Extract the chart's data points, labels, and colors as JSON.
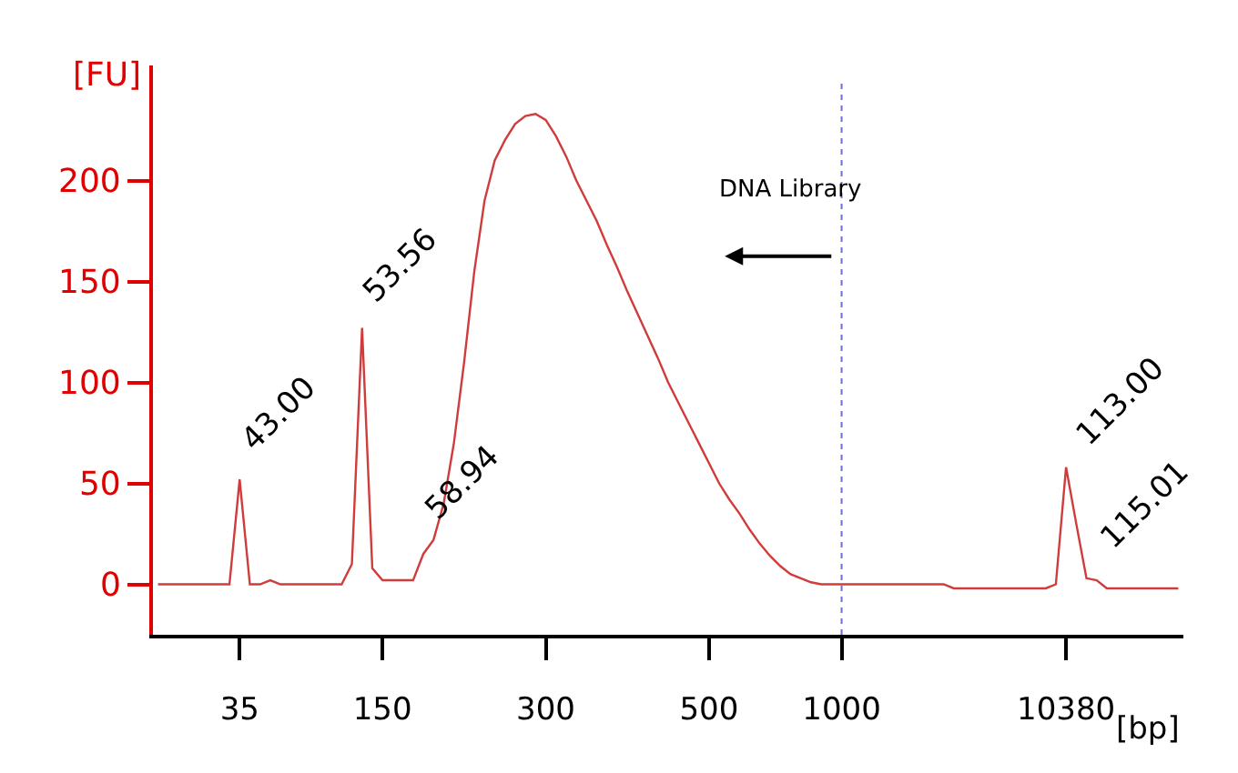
{
  "chart_data": {
    "type": "line",
    "ylabel": "[FU]",
    "xlabel": "[bp]",
    "categories": [
      null,
      null,
      null,
      null,
      null,
      null,
      null,
      null,
      "35",
      null,
      null,
      null,
      null,
      null,
      null,
      null,
      null,
      null,
      null,
      null,
      null,
      null,
      "150",
      null,
      null,
      null,
      null,
      null,
      null,
      null,
      null,
      null,
      null,
      null,
      null,
      null,
      null,
      null,
      "300",
      null,
      null,
      null,
      null,
      null,
      null,
      null,
      null,
      null,
      null,
      null,
      null,
      null,
      null,
      null,
      "500",
      null,
      null,
      null,
      null,
      null,
      null,
      null,
      null,
      null,
      null,
      null,
      null,
      "1000",
      null,
      null,
      null,
      null,
      null,
      null,
      null,
      null,
      null,
      null,
      null,
      null,
      null,
      null,
      null,
      null,
      null,
      null,
      null,
      null,
      null,
      "10380",
      null,
      null,
      null,
      null,
      null,
      null,
      null,
      null,
      null,
      null,
      null
    ],
    "series": [
      {
        "color": "#d03c3c",
        "values": [
          0,
          0,
          0,
          0,
          0,
          0,
          0,
          0,
          52,
          0,
          0,
          2,
          0,
          0,
          0,
          0,
          0,
          0,
          0,
          10,
          127,
          8,
          2,
          2,
          2,
          2,
          15,
          22,
          40,
          70,
          110,
          155,
          190,
          210,
          220,
          228,
          232,
          233,
          230,
          222,
          212,
          200,
          190,
          180,
          168,
          157,
          145,
          134,
          123,
          112,
          100,
          90,
          80,
          70,
          60,
          50,
          42,
          35,
          27,
          20,
          14,
          9,
          5,
          3,
          1,
          0,
          0,
          0,
          0,
          0,
          0,
          0,
          0,
          0,
          0,
          0,
          0,
          0,
          -2,
          -2,
          -2,
          -2,
          -2,
          -2,
          -2,
          -2,
          -2,
          -2,
          0,
          58,
          30,
          3,
          2,
          -2,
          -2,
          -2,
          -2,
          -2,
          -2,
          -2,
          -2
        ]
      }
    ],
    "ylim": [
      -25,
      257
    ],
    "yticks": [
      0,
      50,
      100,
      150,
      200
    ],
    "marker": "none",
    "line_style": "solid",
    "ref_lines": [
      {
        "axis": "x",
        "value": "1000",
        "color": "#7070d0",
        "line_style": "dotted"
      }
    ],
    "annotations": [
      "43.00",
      "53.56",
      "58.94",
      "113.00",
      "115.01",
      "DNA Library"
    ]
  }
}
